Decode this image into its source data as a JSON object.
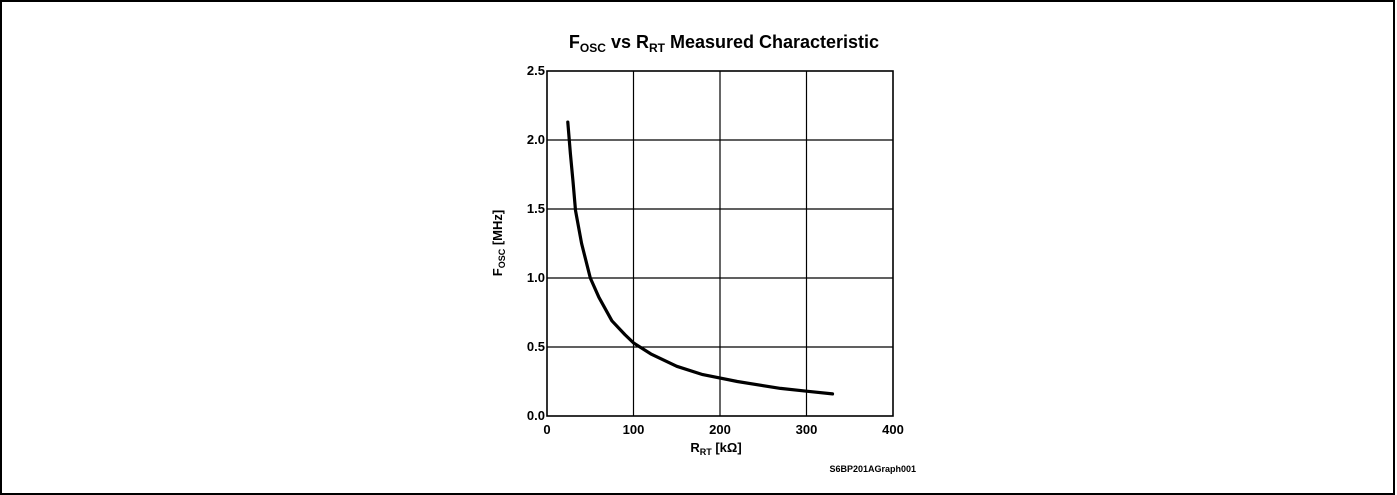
{
  "chart_data": {
    "type": "line",
    "title": {
      "main": "F",
      "main_sub": "OSC",
      "middle": " vs R",
      "middle_sub": "RT",
      "end": " Measured Characteristic"
    },
    "xlabel": {
      "main": "R",
      "sub": "RT",
      "unit": " [kΩ]"
    },
    "ylabel": {
      "main": "F",
      "sub": "OSC",
      "unit": " [MHz]"
    },
    "xlim": [
      0,
      400
    ],
    "ylim": [
      0.0,
      2.5
    ],
    "xticks": [
      0,
      100,
      200,
      300,
      400
    ],
    "xtick_labels": [
      "0",
      "100",
      "200",
      "300",
      "400"
    ],
    "yticks": [
      0.0,
      0.5,
      1.0,
      1.5,
      2.0,
      2.5
    ],
    "ytick_labels": [
      "0.0",
      "0.5",
      "1.0",
      "1.5",
      "2.0",
      "2.5"
    ],
    "grid": true,
    "series": [
      {
        "x": [
          24,
          27,
          30,
          33,
          40,
          50,
          60,
          75,
          90,
          100,
          120,
          150,
          180,
          220,
          270,
          300,
          330
        ],
        "y": [
          2.13,
          1.9,
          1.7,
          1.49,
          1.25,
          1.0,
          0.86,
          0.69,
          0.59,
          0.53,
          0.45,
          0.36,
          0.3,
          0.25,
          0.2,
          0.18,
          0.16
        ]
      }
    ],
    "footnote": "S6BP201AGraph001",
    "colors": {
      "line": "#000000",
      "grid": "#000000",
      "background": "#ffffff"
    }
  }
}
